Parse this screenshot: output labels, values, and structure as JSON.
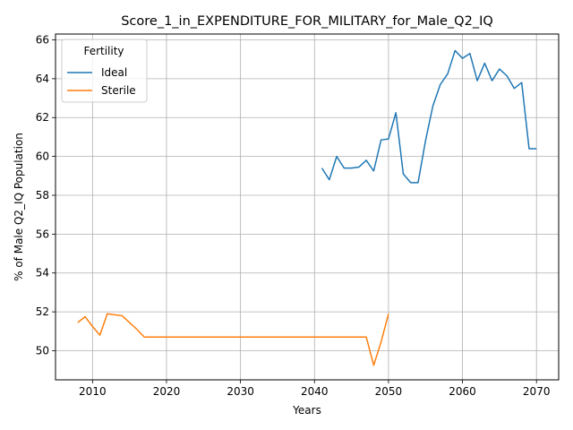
{
  "chart_data": {
    "type": "line",
    "title": "Score_1_in_EXPENDITURE_FOR_MILITARY_for_Male_Q2_IQ",
    "xlabel": "Years",
    "ylabel": "% of Male Q2_IQ Population",
    "xlim": [
      2005,
      2073
    ],
    "ylim": [
      48.5,
      66.3
    ],
    "xticks": [
      2010,
      2020,
      2030,
      2040,
      2050,
      2060,
      2070
    ],
    "yticks": [
      50,
      52,
      54,
      56,
      58,
      60,
      62,
      64,
      66
    ],
    "grid": true,
    "legend": {
      "title": "Fertility",
      "placement": "top-left"
    },
    "series": [
      {
        "name": "Ideal",
        "color": "#1f77b4",
        "x": [
          2041,
          2042,
          2043,
          2044,
          2045,
          2046,
          2047,
          2048,
          2049,
          2050,
          2051,
          2052,
          2053,
          2054,
          2055,
          2056,
          2057,
          2058,
          2059,
          2060,
          2061,
          2062,
          2063,
          2064,
          2065,
          2066,
          2067,
          2068,
          2069,
          2070
        ],
        "y": [
          59.4,
          58.8,
          60.0,
          59.4,
          59.4,
          59.45,
          59.8,
          59.25,
          60.85,
          60.9,
          62.25,
          59.1,
          58.65,
          58.65,
          60.8,
          62.6,
          63.7,
          64.25,
          65.45,
          65.05,
          65.3,
          63.9,
          64.8,
          63.9,
          64.5,
          64.15,
          63.5,
          63.8,
          60.4,
          60.4
        ]
      },
      {
        "name": "Sterile",
        "color": "#ff7f0e",
        "x": [
          2008,
          2009,
          2010,
          2011,
          2012,
          2013,
          2014,
          2015,
          2016,
          2017,
          2018,
          2019,
          2020,
          2021,
          2022,
          2023,
          2024,
          2025,
          2026,
          2027,
          2028,
          2029,
          2030,
          2031,
          2032,
          2033,
          2034,
          2035,
          2036,
          2037,
          2038,
          2039,
          2040,
          2041,
          2042,
          2043,
          2044,
          2045,
          2046,
          2047,
          2048,
          2049,
          2050
        ],
        "y": [
          51.45,
          51.75,
          51.25,
          50.8,
          51.9,
          51.85,
          51.8,
          51.45,
          51.1,
          50.7,
          50.7,
          50.7,
          50.7,
          50.7,
          50.7,
          50.7,
          50.7,
          50.7,
          50.7,
          50.7,
          50.7,
          50.7,
          50.7,
          50.7,
          50.7,
          50.7,
          50.7,
          50.7,
          50.7,
          50.7,
          50.7,
          50.7,
          50.7,
          50.7,
          50.7,
          50.7,
          50.7,
          50.7,
          50.7,
          50.7,
          49.25,
          50.45,
          51.9
        ]
      }
    ]
  }
}
